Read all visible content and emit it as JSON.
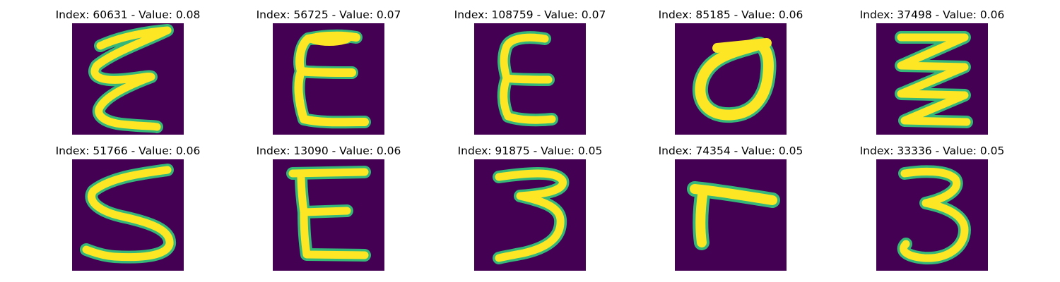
{
  "chart_data": {
    "type": "image-grid",
    "colors": {
      "background": "#440154",
      "stroke": "#fde725",
      "edge": "#35b779"
    },
    "panels": [
      {
        "title": "Index: 60631 - Value: 0.08",
        "index": 60631,
        "value": 0.08,
        "glyph": "reversed-3-scribble"
      },
      {
        "title": "Index: 56725 - Value: 0.07",
        "index": 56725,
        "value": 0.07,
        "glyph": "E"
      },
      {
        "title": "Index: 108759 - Value: 0.07",
        "index": 108759,
        "value": 0.07,
        "glyph": "E"
      },
      {
        "title": "Index: 85185 - Value: 0.06",
        "index": 85185,
        "value": 0.06,
        "glyph": "0"
      },
      {
        "title": "Index: 37498 - Value: 0.06",
        "index": 37498,
        "value": 0.06,
        "glyph": "zigzag"
      },
      {
        "title": "Index: 51766 - Value: 0.06",
        "index": 51766,
        "value": 0.06,
        "glyph": "5"
      },
      {
        "title": "Index: 13090 - Value: 0.06",
        "index": 13090,
        "value": 0.06,
        "glyph": "E"
      },
      {
        "title": "Index: 91875 - Value: 0.05",
        "index": 91875,
        "value": 0.05,
        "glyph": "3"
      },
      {
        "title": "Index: 74354 - Value: 0.05",
        "index": 74354,
        "value": 0.05,
        "glyph": "7"
      },
      {
        "title": "Index: 33336 - Value: 0.05",
        "index": 33336,
        "value": 0.05,
        "glyph": "3"
      }
    ]
  }
}
